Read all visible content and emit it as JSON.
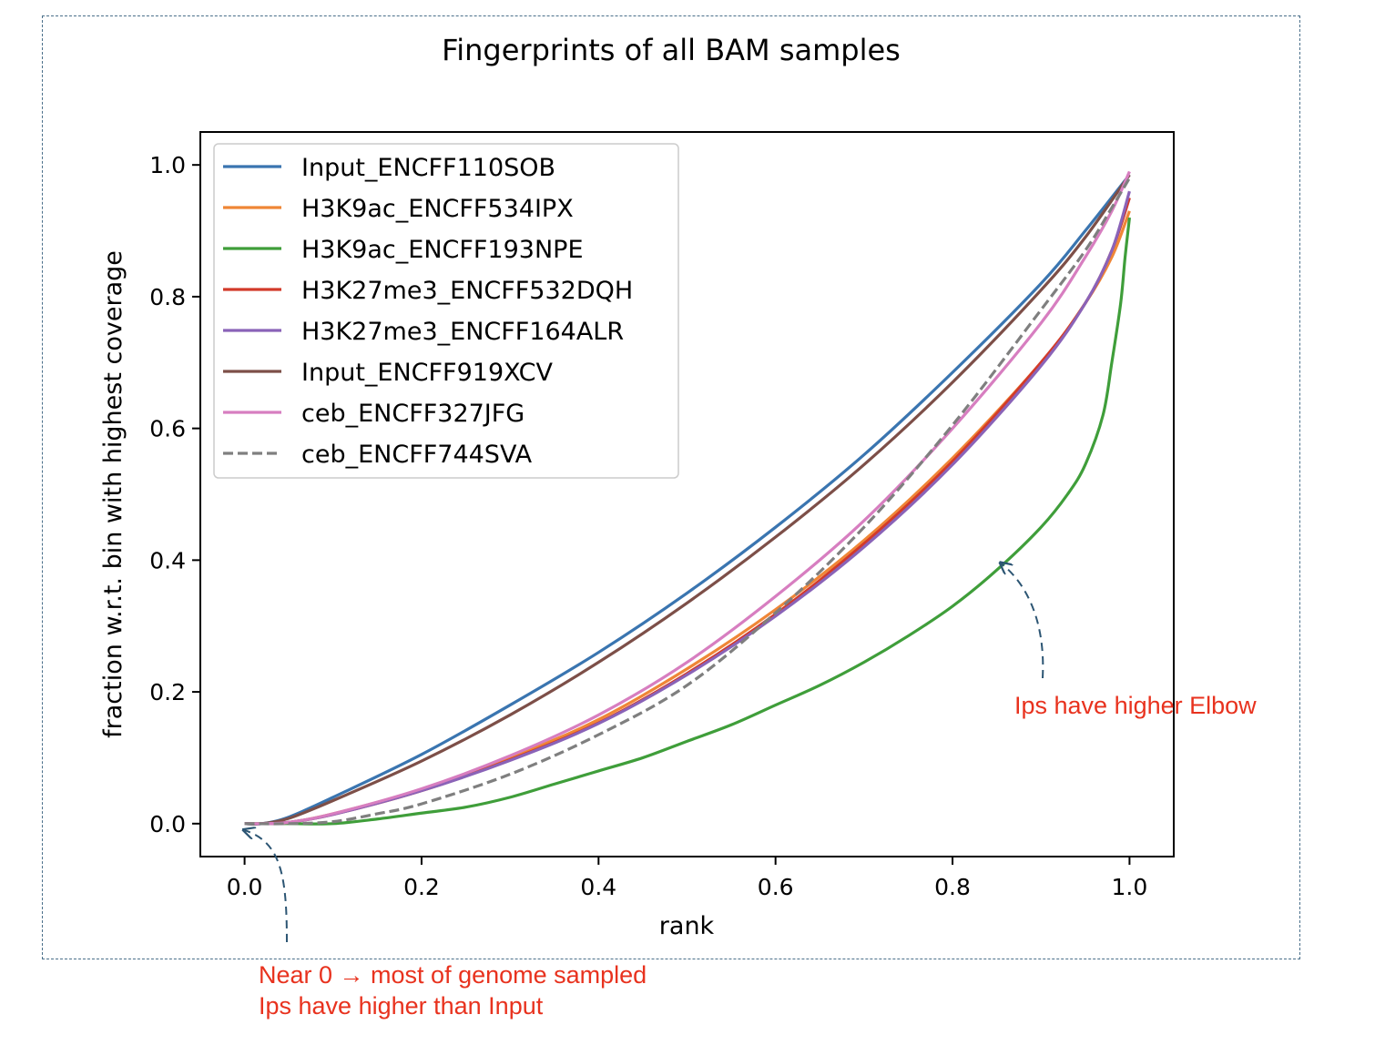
{
  "chart_data": {
    "type": "line",
    "title": "Fingerprints of all BAM samples",
    "xlabel": "rank",
    "ylabel": "fraction w.r.t. bin with highest coverage",
    "xlim": [
      -0.05,
      1.05
    ],
    "ylim": [
      -0.05,
      1.05
    ],
    "xticks": [
      "0.0",
      "0.2",
      "0.4",
      "0.6",
      "0.8",
      "1.0"
    ],
    "yticks": [
      "0.0",
      "0.2",
      "0.4",
      "0.6",
      "0.8",
      "1.0"
    ],
    "legend_position": "top-left",
    "series": [
      {
        "name": "Input_ENCFF110SOB",
        "color": "#3a75b0",
        "dash": "solid",
        "x": [
          0,
          0.02,
          0.05,
          0.1,
          0.2,
          0.3,
          0.4,
          0.5,
          0.6,
          0.7,
          0.8,
          0.9,
          0.95,
          1.0
        ],
        "y": [
          0,
          0,
          0.01,
          0.04,
          0.105,
          0.18,
          0.26,
          0.35,
          0.45,
          0.56,
          0.685,
          0.82,
          0.9,
          0.985
        ]
      },
      {
        "name": "H3K9ac_ENCFF534IPX",
        "color": "#ef8636",
        "dash": "solid",
        "x": [
          0,
          0.02,
          0.05,
          0.1,
          0.2,
          0.3,
          0.4,
          0.5,
          0.6,
          0.7,
          0.8,
          0.9,
          0.95,
          0.98,
          1.0
        ],
        "y": [
          0,
          0,
          0.002,
          0.015,
          0.052,
          0.1,
          0.158,
          0.235,
          0.325,
          0.43,
          0.555,
          0.7,
          0.79,
          0.86,
          0.93
        ]
      },
      {
        "name": "H3K9ac_ENCFF193NPE",
        "color": "#3f9e3a",
        "dash": "solid",
        "x": [
          0,
          0.05,
          0.1,
          0.15,
          0.2,
          0.25,
          0.3,
          0.35,
          0.4,
          0.45,
          0.5,
          0.55,
          0.6,
          0.65,
          0.7,
          0.75,
          0.8,
          0.85,
          0.9,
          0.93,
          0.95,
          0.97,
          0.98,
          0.99,
          0.995,
          1.0
        ],
        "y": [
          0,
          0,
          0,
          0.007,
          0.016,
          0.025,
          0.04,
          0.06,
          0.08,
          0.1,
          0.125,
          0.15,
          0.18,
          0.21,
          0.245,
          0.285,
          0.33,
          0.385,
          0.45,
          0.5,
          0.545,
          0.62,
          0.7,
          0.79,
          0.86,
          0.92
        ]
      },
      {
        "name": "H3K27me3_ENCFF532DQH",
        "color": "#d23a2a",
        "dash": "solid",
        "x": [
          0,
          0.02,
          0.05,
          0.1,
          0.2,
          0.3,
          0.4,
          0.5,
          0.6,
          0.7,
          0.8,
          0.9,
          0.95,
          0.98,
          1.0
        ],
        "y": [
          0,
          0,
          0.002,
          0.014,
          0.05,
          0.097,
          0.153,
          0.228,
          0.318,
          0.425,
          0.55,
          0.7,
          0.79,
          0.87,
          0.95
        ]
      },
      {
        "name": "H3K27me3_ENCFF164ALR",
        "color": "#8a63b8",
        "dash": "solid",
        "x": [
          0,
          0.02,
          0.05,
          0.1,
          0.2,
          0.3,
          0.4,
          0.5,
          0.6,
          0.7,
          0.8,
          0.9,
          0.95,
          0.98,
          1.0
        ],
        "y": [
          0,
          0,
          0.002,
          0.014,
          0.05,
          0.096,
          0.152,
          0.226,
          0.315,
          0.42,
          0.545,
          0.695,
          0.79,
          0.87,
          0.96
        ]
      },
      {
        "name": "Input_ENCFF919XCV",
        "color": "#7d4f48",
        "dash": "solid",
        "x": [
          0,
          0.02,
          0.05,
          0.1,
          0.2,
          0.3,
          0.4,
          0.5,
          0.6,
          0.7,
          0.8,
          0.9,
          0.95,
          1.0
        ],
        "y": [
          0,
          0,
          0.008,
          0.035,
          0.095,
          0.165,
          0.245,
          0.335,
          0.435,
          0.545,
          0.67,
          0.81,
          0.89,
          0.985
        ]
      },
      {
        "name": "ceb_ENCFF327JFG",
        "color": "#d77ec0",
        "dash": "solid",
        "x": [
          0,
          0.02,
          0.05,
          0.1,
          0.2,
          0.3,
          0.4,
          0.5,
          0.6,
          0.7,
          0.8,
          0.9,
          0.95,
          0.98,
          1.0
        ],
        "y": [
          0,
          0,
          0.002,
          0.015,
          0.053,
          0.103,
          0.165,
          0.245,
          0.345,
          0.46,
          0.6,
          0.76,
          0.86,
          0.93,
          0.99
        ]
      },
      {
        "name": "ceb_ENCFF744SVA",
        "color": "#7f7f7f",
        "dash": "dashed",
        "x": [
          0,
          0.05,
          0.1,
          0.15,
          0.2,
          0.3,
          0.4,
          0.5,
          0.6,
          0.7,
          0.8,
          0.9,
          0.95,
          0.98,
          1.0
        ],
        "y": [
          0,
          0,
          0.003,
          0.015,
          0.03,
          0.075,
          0.135,
          0.21,
          0.32,
          0.45,
          0.605,
          0.78,
          0.87,
          0.935,
          0.98
        ]
      }
    ],
    "annotations": [
      {
        "id": "elbow",
        "lines": [
          "Ips have higher Elbow"
        ],
        "color": "#e8321e",
        "arrow_target": [
          0.855,
          0.395
        ]
      },
      {
        "id": "origin",
        "lines": [
          "Near 0 → most of genome sampled",
          "Ips have higher than Input"
        ],
        "color": "#e8321e",
        "arrow_target": [
          0.0,
          -0.01
        ]
      }
    ]
  }
}
